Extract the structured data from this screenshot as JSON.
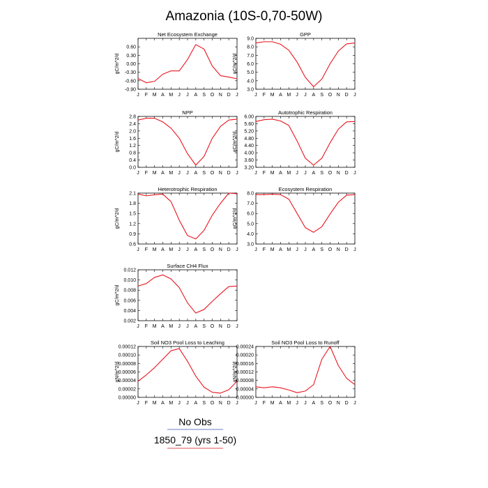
{
  "figure": {
    "title": "Amazonia (10S-0,70-50W)",
    "legend": [
      {
        "label": "No Obs",
        "color": "#6b7fc4"
      },
      {
        "label": "1850_79 (yrs 1-50)",
        "color": "#e05050"
      }
    ]
  },
  "months": [
    "J",
    "F",
    "M",
    "A",
    "M",
    "J",
    "J",
    "A",
    "S",
    "O",
    "N",
    "D",
    "J"
  ],
  "line_color": "#e8141e",
  "chart_data": [
    {
      "type": "line",
      "title": "Net Ecosystem Exchange",
      "ylabel": "gC/m^2/d",
      "ylim": [
        -0.9,
        0.9
      ],
      "yticks": [
        -0.9,
        -0.6,
        -0.3,
        0.0,
        0.3,
        0.6
      ],
      "ytick_labels": [
        "-0.90",
        "-0.60",
        "-0.30",
        "0.00",
        "0.30",
        "0.60"
      ],
      "values": [
        -0.52,
        -0.67,
        -0.62,
        -0.37,
        -0.25,
        -0.25,
        0.15,
        0.68,
        0.52,
        -0.08,
        -0.42,
        -0.47,
        -0.53
      ]
    },
    {
      "type": "line",
      "title": "GPP",
      "ylabel": "gC/m^2/d",
      "ylim": [
        3.0,
        9.0
      ],
      "yticks": [
        3,
        4,
        5,
        6,
        7,
        8,
        9
      ],
      "ytick_labels": [
        "3.0",
        "4.0",
        "5.0",
        "6.0",
        "7.0",
        "8.0",
        "9.0"
      ],
      "values": [
        8.45,
        8.6,
        8.6,
        8.3,
        7.6,
        6.2,
        4.4,
        3.3,
        4.2,
        6.0,
        7.5,
        8.35,
        8.45
      ]
    },
    {
      "type": "line",
      "title": "NPP",
      "ylabel": "gC/m^2/d",
      "ylim": [
        0.0,
        2.8
      ],
      "yticks": [
        0.0,
        0.4,
        0.8,
        1.2,
        1.6,
        2.0,
        2.4,
        2.8
      ],
      "ytick_labels": [
        "0.0",
        "0.4",
        "0.8",
        "1.2",
        "1.6",
        "2.0",
        "2.4",
        "2.8"
      ],
      "values": [
        2.6,
        2.7,
        2.7,
        2.5,
        2.15,
        1.6,
        0.75,
        0.12,
        0.6,
        1.6,
        2.25,
        2.6,
        2.65
      ]
    },
    {
      "type": "line",
      "title": "Autotrophic Respiration",
      "ylabel": "gC/m^2/d",
      "ylim": [
        3.2,
        6.0
      ],
      "yticks": [
        3.2,
        3.6,
        4.0,
        4.4,
        4.8,
        5.2,
        5.6,
        6.0
      ],
      "ytick_labels": [
        "3.20",
        "3.60",
        "4.00",
        "4.40",
        "4.80",
        "5.20",
        "5.60",
        "6.00"
      ],
      "values": [
        5.72,
        5.82,
        5.85,
        5.75,
        5.5,
        4.65,
        3.7,
        3.32,
        3.7,
        4.55,
        5.3,
        5.7,
        5.72
      ]
    },
    {
      "type": "line",
      "title": "Heterotrophic Respiration",
      "ylabel": "gC/m^2/d",
      "ylim": [
        0.6,
        2.1
      ],
      "yticks": [
        0.6,
        0.9,
        1.2,
        1.5,
        1.8,
        2.1
      ],
      "ytick_labels": [
        "0.6",
        "0.9",
        "1.2",
        "1.5",
        "1.8",
        "2.1"
      ],
      "values": [
        2.07,
        2.02,
        2.05,
        2.07,
        1.85,
        1.3,
        0.85,
        0.75,
        1.0,
        1.45,
        1.8,
        2.1,
        2.08
      ]
    },
    {
      "type": "line",
      "title": "Ecosystem Respiration",
      "ylabel": "gC/m^2/d",
      "ylim": [
        3.0,
        8.0
      ],
      "yticks": [
        3,
        4,
        5,
        6,
        7,
        8
      ],
      "ytick_labels": [
        "3.0",
        "4.0",
        "5.0",
        "6.0",
        "7.0",
        "8.0"
      ],
      "values": [
        7.85,
        7.85,
        7.9,
        7.85,
        7.4,
        6.0,
        4.6,
        4.15,
        4.7,
        5.95,
        7.1,
        7.8,
        7.85
      ]
    },
    {
      "type": "line",
      "title": "Surface CH4 Flux",
      "ylabel": "gC/m^2/d",
      "ylim": [
        0.002,
        0.012
      ],
      "yticks": [
        0.002,
        0.004,
        0.006,
        0.008,
        0.01,
        0.012
      ],
      "ytick_labels": [
        "0.002",
        "0.004",
        "0.006",
        "0.008",
        "0.010",
        "0.012"
      ],
      "values": [
        0.0088,
        0.0093,
        0.0105,
        0.011,
        0.0102,
        0.0085,
        0.0055,
        0.0035,
        0.0042,
        0.0058,
        0.0073,
        0.0087,
        0.0088
      ]
    },
    {
      "type": "line",
      "title": "Soil NO3 Pool Loss to Leaching",
      "ylabel": "gN/m^2/d",
      "ylim": [
        0.0,
        0.00012
      ],
      "yticks": [
        0.0,
        2e-05,
        4e-05,
        6e-05,
        8e-05,
        0.0001,
        0.00012
      ],
      "ytick_labels": [
        "0.00000",
        "0.00002",
        "0.00004",
        "0.00006",
        "0.00008",
        "0.00010",
        "0.00012"
      ],
      "values": [
        3.8e-05,
        5.3e-05,
        7e-05,
        9e-05,
        0.00011,
        0.000115,
        8.5e-05,
        5e-05,
        2.4e-05,
        1.2e-05,
        1e-05,
        1.8e-05,
        3.8e-05
      ]
    },
    {
      "type": "line",
      "title": "Soil NO3 Pool Loss to Runoff",
      "ylabel": "gN/m^2/d",
      "ylim": [
        0.0,
        0.00024
      ],
      "yticks": [
        0.0,
        4e-05,
        8e-05,
        0.00012,
        0.00016,
        0.0002,
        0.00024
      ],
      "ytick_labels": [
        "0.00000",
        "0.00004",
        "0.00008",
        "0.00012",
        "0.00016",
        "0.00020",
        "0.00024"
      ],
      "values": [
        5e-05,
        4.5e-05,
        5e-05,
        4.5e-05,
        3.5e-05,
        2.2e-05,
        3e-05,
        6e-05,
        0.00018,
        0.00024,
        0.00015,
        9e-05,
        6e-05
      ]
    }
  ]
}
